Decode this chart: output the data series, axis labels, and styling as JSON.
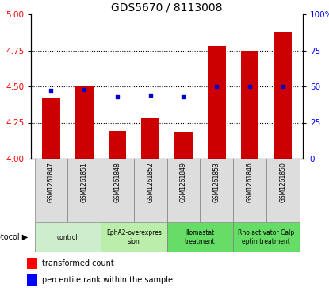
{
  "title": "GDS5670 / 8113008",
  "samples": [
    "GSM1261847",
    "GSM1261851",
    "GSM1261848",
    "GSM1261852",
    "GSM1261849",
    "GSM1261853",
    "GSM1261846",
    "GSM1261850"
  ],
  "bar_values": [
    4.42,
    4.5,
    4.19,
    4.28,
    4.18,
    4.78,
    4.75,
    4.88
  ],
  "percentile_values": [
    47,
    48,
    43,
    44,
    43,
    50,
    50,
    50
  ],
  "protocols": [
    {
      "label": "control",
      "span": [
        0,
        2
      ],
      "color": "#cceecc"
    },
    {
      "label": "EphA2-overexpres\nsion",
      "span": [
        2,
        4
      ],
      "color": "#bbeeaa"
    },
    {
      "label": "Ilomastat\ntreatment",
      "span": [
        4,
        6
      ],
      "color": "#66dd66"
    },
    {
      "label": "Rho activator Calp\neptin treatment",
      "span": [
        6,
        8
      ],
      "color": "#66dd66"
    }
  ],
  "bar_color": "#cc0000",
  "dot_color": "#0000cc",
  "ylim_left": [
    4.0,
    5.0
  ],
  "ylim_right": [
    0,
    100
  ],
  "yticks_left": [
    4.0,
    4.25,
    4.5,
    4.75,
    5.0
  ],
  "yticks_right": [
    0,
    25,
    50,
    75,
    100
  ],
  "ytick_labels_right": [
    "0",
    "25",
    "50",
    "75",
    "100%"
  ],
  "background_color": "#ffffff",
  "legend_items": [
    "transformed count",
    "percentile rank within the sample"
  ],
  "sample_bg_color": "#dddddd",
  "grid_yticks": [
    4.25,
    4.5,
    4.75
  ]
}
